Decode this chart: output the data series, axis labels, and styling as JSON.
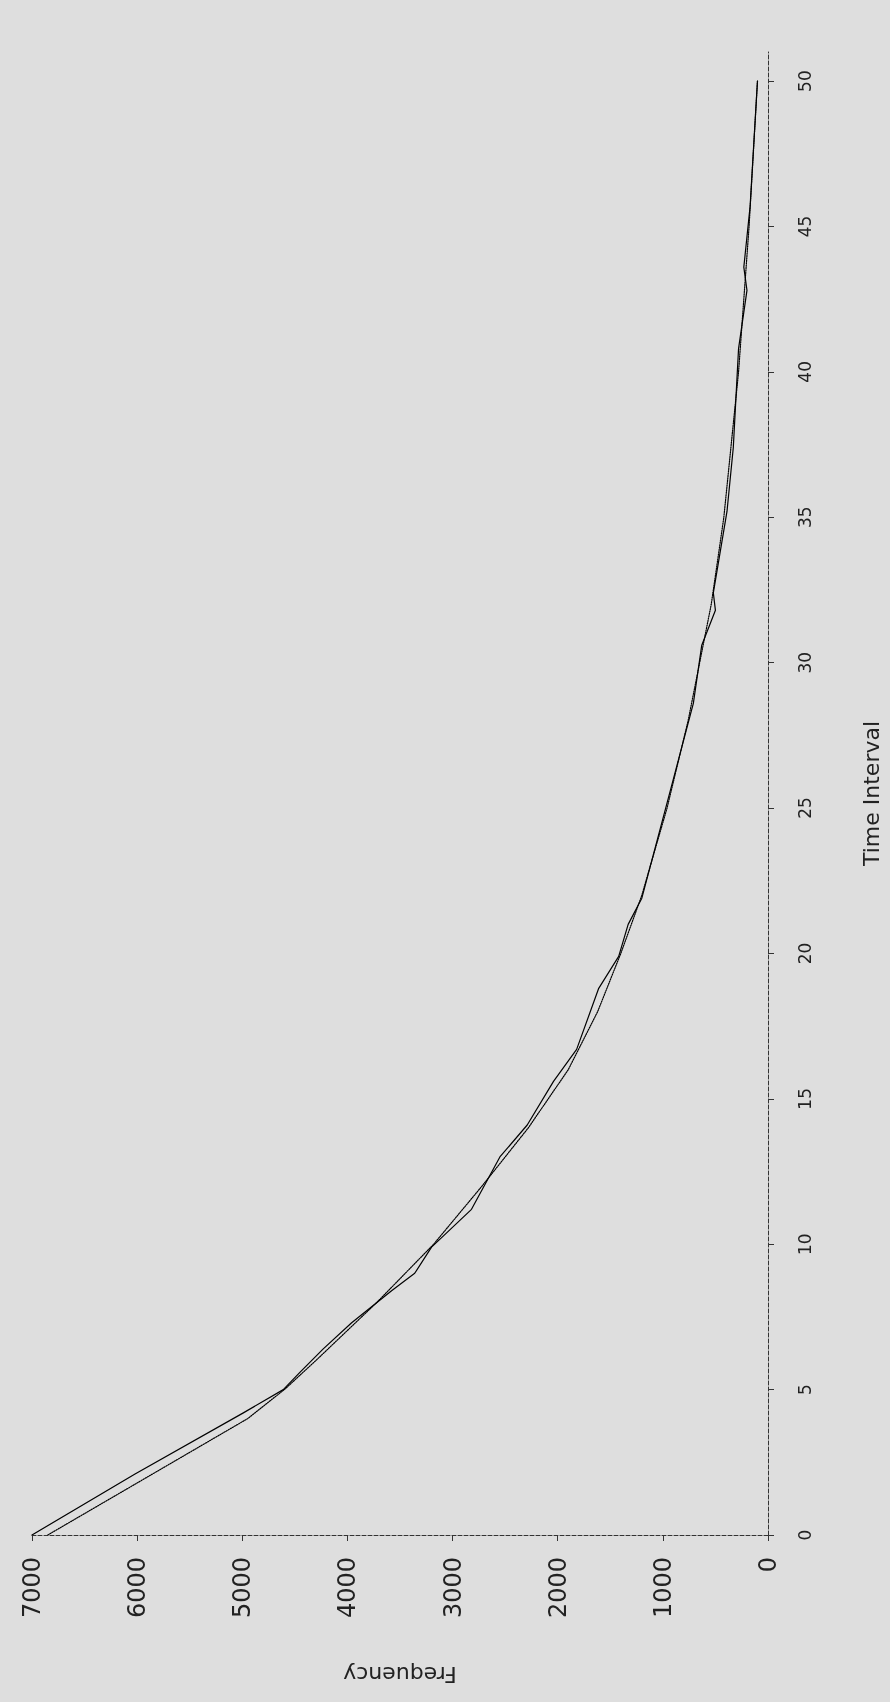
{
  "chart_data": {
    "type": "line",
    "xlabel": "Frequency",
    "ylabel": "Time Interval",
    "xlim": [
      7000,
      0
    ],
    "xticks": [
      7000,
      6000,
      5000,
      4000,
      3000,
      2000,
      1000,
      0
    ],
    "ylim": [
      0,
      51
    ],
    "yticks": [
      0,
      5,
      10,
      15,
      20,
      25,
      30,
      35,
      40,
      45,
      50
    ],
    "grid": false,
    "marker": "none",
    "series": [
      {
        "color": "#000000",
        "line_style": "solid",
        "values": [
          0,
          2.1,
          4.2,
          5,
          5.6,
          6.4,
          7.3,
          8.4,
          9,
          9.9,
          11.2,
          13,
          14.1,
          15.6,
          16.7,
          18.8,
          19.9,
          21,
          21.9,
          24.9,
          28.6,
          30.6,
          31.8,
          32.4,
          35.2,
          37.4,
          40.8,
          42.8,
          43.6,
          45.7,
          49.4,
          50
        ],
        "x": [
          7000,
          6020,
          4990,
          4610,
          4450,
          4230,
          3960,
          3580,
          3360,
          3200,
          2820,
          2550,
          2290,
          2040,
          1820,
          1610,
          1420,
          1330,
          1200,
          980,
          710,
          630,
          500,
          520,
          390,
          330,
          280,
          200,
          230,
          170,
          110,
          100
        ]
      },
      {
        "color": "#000000",
        "line_style": "dotted",
        "values": [
          0,
          2,
          4,
          5,
          6,
          8,
          10,
          12,
          14,
          16,
          18,
          20,
          22,
          25,
          28,
          30,
          32,
          35,
          40,
          45,
          50
        ],
        "x": [
          6850,
          5900,
          4950,
          4600,
          4300,
          3720,
          3180,
          2720,
          2280,
          1900,
          1620,
          1400,
          1200,
          960,
          760,
          650,
          540,
          420,
          280,
          180,
          100
        ]
      }
    ]
  }
}
